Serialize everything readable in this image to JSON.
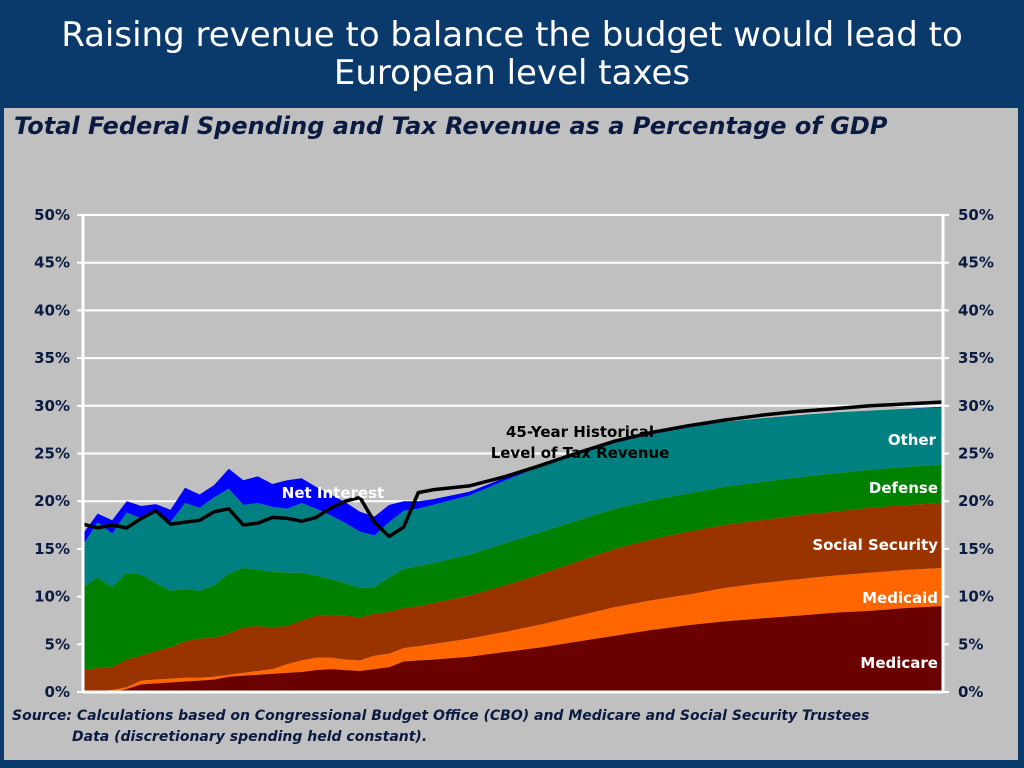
{
  "slide": {
    "title_line1": "Raising revenue to balance the budget would lead to",
    "title_line2": "European level taxes"
  },
  "chart_data": {
    "type": "area",
    "title": "Total Federal Spending and Tax Revenue as a Percentage of GDP",
    "ylim": [
      0,
      50
    ],
    "y_ticks": [
      "0%",
      "5%",
      "10%",
      "15%",
      "20%",
      "25%",
      "30%",
      "35%",
      "40%",
      "45%",
      "50%"
    ],
    "x_range": [
      1962,
      2080
    ],
    "x_labels_shown": false,
    "grid": true,
    "stacking_order": [
      "Medicare",
      "Medicaid",
      "Social Security",
      "Defense",
      "Other",
      "Net Interest"
    ],
    "x": [
      1962,
      1964,
      1966,
      1968,
      1970,
      1972,
      1974,
      1976,
      1978,
      1980,
      1982,
      1984,
      1986,
      1988,
      1990,
      1992,
      1994,
      1996,
      1998,
      2000,
      2002,
      2004,
      2006,
      2008,
      2010,
      2015,
      2020,
      2025,
      2030,
      2035,
      2040,
      2045,
      2050,
      2055,
      2060,
      2065,
      2070,
      2075,
      2080
    ],
    "cumulative_tops": [
      {
        "name": "Medicare",
        "color": "#6b0000",
        "values": [
          0,
          0,
          0,
          0.3,
          0.8,
          0.9,
          1.0,
          1.1,
          1.2,
          1.3,
          1.6,
          1.7,
          1.8,
          1.9,
          2.0,
          2.1,
          2.3,
          2.4,
          2.3,
          2.2,
          2.4,
          2.6,
          3.2,
          3.3,
          3.4,
          3.7,
          4.2,
          4.7,
          5.3,
          5.9,
          6.5,
          7.0,
          7.4,
          7.7,
          8.0,
          8.3,
          8.5,
          8.8,
          9.0
        ]
      },
      {
        "name": "Medicaid",
        "color": "#ff6600",
        "values": [
          0,
          0.1,
          0.2,
          0.5,
          1.2,
          1.3,
          1.4,
          1.5,
          1.5,
          1.6,
          1.8,
          2.0,
          2.2,
          2.4,
          2.9,
          3.3,
          3.6,
          3.6,
          3.4,
          3.3,
          3.8,
          4.0,
          4.6,
          4.8,
          5.0,
          5.6,
          6.3,
          7.1,
          8.0,
          8.9,
          9.6,
          10.2,
          10.9,
          11.4,
          11.8,
          12.2,
          12.5,
          12.8,
          13.0
        ]
      },
      {
        "name": "Social Security",
        "color": "#993300",
        "values": [
          2.3,
          2.5,
          2.6,
          3.4,
          3.8,
          4.3,
          4.7,
          5.3,
          5.6,
          5.7,
          6.1,
          6.8,
          6.9,
          6.8,
          6.9,
          7.5,
          8.0,
          8.1,
          8.0,
          7.8,
          8.2,
          8.4,
          8.8,
          9.0,
          9.3,
          10.1,
          11.2,
          12.4,
          13.7,
          15.0,
          16.0,
          16.8,
          17.5,
          18.0,
          18.5,
          18.9,
          19.3,
          19.6,
          19.8
        ]
      },
      {
        "name": "Defense",
        "color": "#008000",
        "values": [
          11.0,
          12.0,
          11.0,
          12.5,
          12.3,
          11.4,
          10.6,
          10.8,
          10.6,
          11.2,
          12.4,
          13.0,
          12.8,
          12.6,
          12.5,
          12.5,
          12.2,
          11.8,
          11.4,
          10.9,
          11.0,
          12.0,
          12.9,
          13.2,
          13.5,
          14.4,
          15.6,
          16.8,
          18.0,
          19.2,
          20.1,
          20.8,
          21.5,
          22.0,
          22.5,
          22.9,
          23.3,
          23.6,
          23.8
        ]
      },
      {
        "name": "Other",
        "color": "#008080",
        "values": [
          15.4,
          17.8,
          16.6,
          18.8,
          18.2,
          18.8,
          17.8,
          19.8,
          19.3,
          20.4,
          21.3,
          19.6,
          19.8,
          19.4,
          19.2,
          19.8,
          19.2,
          18.5,
          17.7,
          16.8,
          16.4,
          17.8,
          19.0,
          19.2,
          19.6,
          20.6,
          22.2,
          23.7,
          25.0,
          26.1,
          27.0,
          27.7,
          28.3,
          28.7,
          29.0,
          29.3,
          29.5,
          29.7,
          29.8
        ]
      },
      {
        "name": "Net Interest",
        "color": "#0000ff",
        "values": [
          16.6,
          18.7,
          18.0,
          20.0,
          19.5,
          19.7,
          19.1,
          21.4,
          20.7,
          21.7,
          23.4,
          22.2,
          22.6,
          21.8,
          22.2,
          22.4,
          21.5,
          20.7,
          19.9,
          18.9,
          18.4,
          19.6,
          20.0,
          20.0,
          20.2,
          21.0,
          22.5,
          24.0,
          25.2,
          26.3,
          27.1,
          27.8,
          28.3,
          28.7,
          29.0,
          29.3,
          29.5,
          29.7,
          29.9
        ]
      }
    ],
    "revenue_line": {
      "color": "#000000",
      "x": [
        1962,
        1964,
        1966,
        1968,
        1970,
        1972,
        1974,
        1976,
        1978,
        1980,
        1982,
        1984,
        1986,
        1988,
        1990,
        1992,
        1994,
        1996,
        1998,
        2000,
        2002,
        2004,
        2006,
        2008,
        2010,
        2015,
        2020,
        2025,
        2030,
        2035,
        2040,
        2045,
        2050,
        2055,
        2060,
        2065,
        2070,
        2075,
        2080
      ],
      "values": [
        17.6,
        17.2,
        17.5,
        17.2,
        18.2,
        19.0,
        17.6,
        17.8,
        18.0,
        18.9,
        19.2,
        17.5,
        17.7,
        18.3,
        18.2,
        17.9,
        18.3,
        19.3,
        20.0,
        20.4,
        17.8,
        16.3,
        17.3,
        20.9,
        21.2,
        21.6,
        22.6,
        23.8,
        25.1,
        26.3,
        27.2,
        27.9,
        28.5,
        29.0,
        29.4,
        29.7,
        30.0,
        30.2,
        30.4
      ]
    },
    "series_labels": {
      "medicare": "Medicare",
      "medicaid": "Medicaid",
      "social_security": "Social Security",
      "defense": "Defense",
      "other": "Other",
      "net_interest": "Net Interest",
      "revenue_line1": "45-Year Historical",
      "revenue_line2": "Level of Tax Revenue"
    }
  },
  "source": {
    "line1": "Source: Calculations based on Congressional Budget Office (CBO) and Medicare and Social Security Trustees",
    "line2": "Data (discretionary spending held constant)."
  }
}
